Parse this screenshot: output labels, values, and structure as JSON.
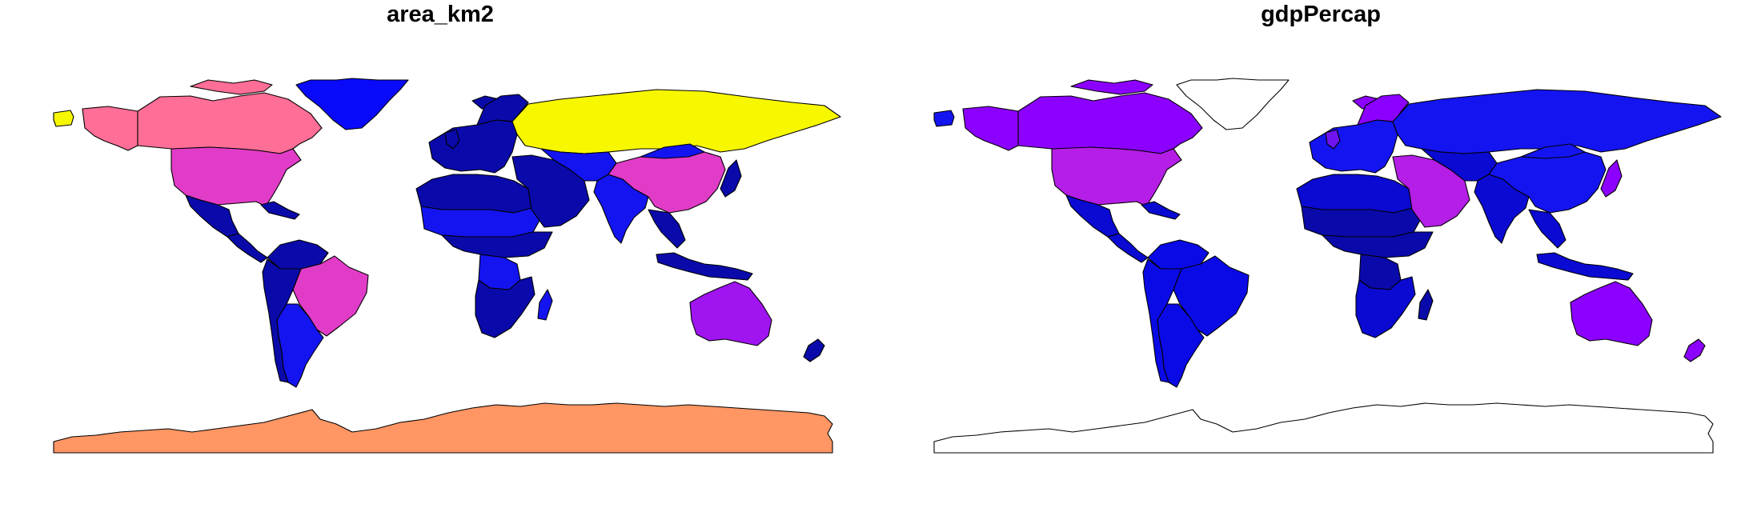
{
  "panels": [
    {
      "title": "area_km2",
      "fills": {
        "north-america-arctic": "#F7F700",
        "alaska": "#FF6E96",
        "canada": "#FF6E96",
        "canada-islands": "#FF6E96",
        "greenland": "#0A0AFA",
        "usa": "#E13CC8",
        "mexico": "#0A0AAA",
        "central-america": "#0A0AAA",
        "caribbean": "#0A0AAA",
        "south-america-north": "#0A0AAA",
        "brazil": "#E13CC8",
        "argentina": "#1414F0",
        "south-america-west": "#0A0AAA",
        "iceland": "#0A0AAA",
        "europe": "#0A0AAA",
        "uk": "#0A0AAA",
        "scandinavia": "#0A0AAA",
        "russia": "#F7F700",
        "north-africa": "#0A0AAA",
        "sahel": "#1414F0",
        "central-africa": "#0A0AAA",
        "dr-congo": "#1414F0",
        "southern-africa": "#0A0AAA",
        "madagascar": "#1414F0",
        "middle-east": "#0A0AAA",
        "central-asia": "#1414F0",
        "india": "#1414F0",
        "china": "#E13CC8",
        "mongolia": "#1414F0",
        "southeast-asia": "#0A0AAA",
        "japan": "#0A0AAA",
        "indonesia": "#0A0AAA",
        "australia": "#A014F0",
        "new-zealand": "#0A0AAA",
        "antarctica": "#FF9664"
      }
    },
    {
      "title": "gdpPercap",
      "fills": {
        "north-america-arctic": "#1414F0",
        "alaska": "#8C00FF",
        "canada": "#8C00FF",
        "canada-islands": "#8C00FF",
        "greenland": "#FFFFFF",
        "usa": "#B41EE6",
        "mexico": "#0A0AD2",
        "central-america": "#0A0AD2",
        "caribbean": "#0A0AD2",
        "south-america-north": "#0A0AE6",
        "brazil": "#0A0AE6",
        "argentina": "#0A0AE6",
        "south-america-west": "#0A0AE6",
        "iceland": "#8C00FF",
        "europe": "#1414F0",
        "uk": "#6E14F0",
        "scandinavia": "#8C00FF",
        "russia": "#1414F0",
        "north-africa": "#0A0AD2",
        "sahel": "#0A0AAA",
        "central-africa": "#0A0AAA",
        "dr-congo": "#0A0AAA",
        "southern-africa": "#0A0AD2",
        "madagascar": "#0A0AAA",
        "middle-east": "#B41EE6",
        "central-asia": "#0A0AD2",
        "india": "#0A0AD2",
        "china": "#1414F0",
        "mongolia": "#1414F0",
        "southeast-asia": "#0A0AD2",
        "japan": "#8C00FF",
        "indonesia": "#0A0AD2",
        "australia": "#8C00FF",
        "new-zealand": "#8C00FF",
        "antarctica": "#FFFFFF"
      }
    }
  ]
}
